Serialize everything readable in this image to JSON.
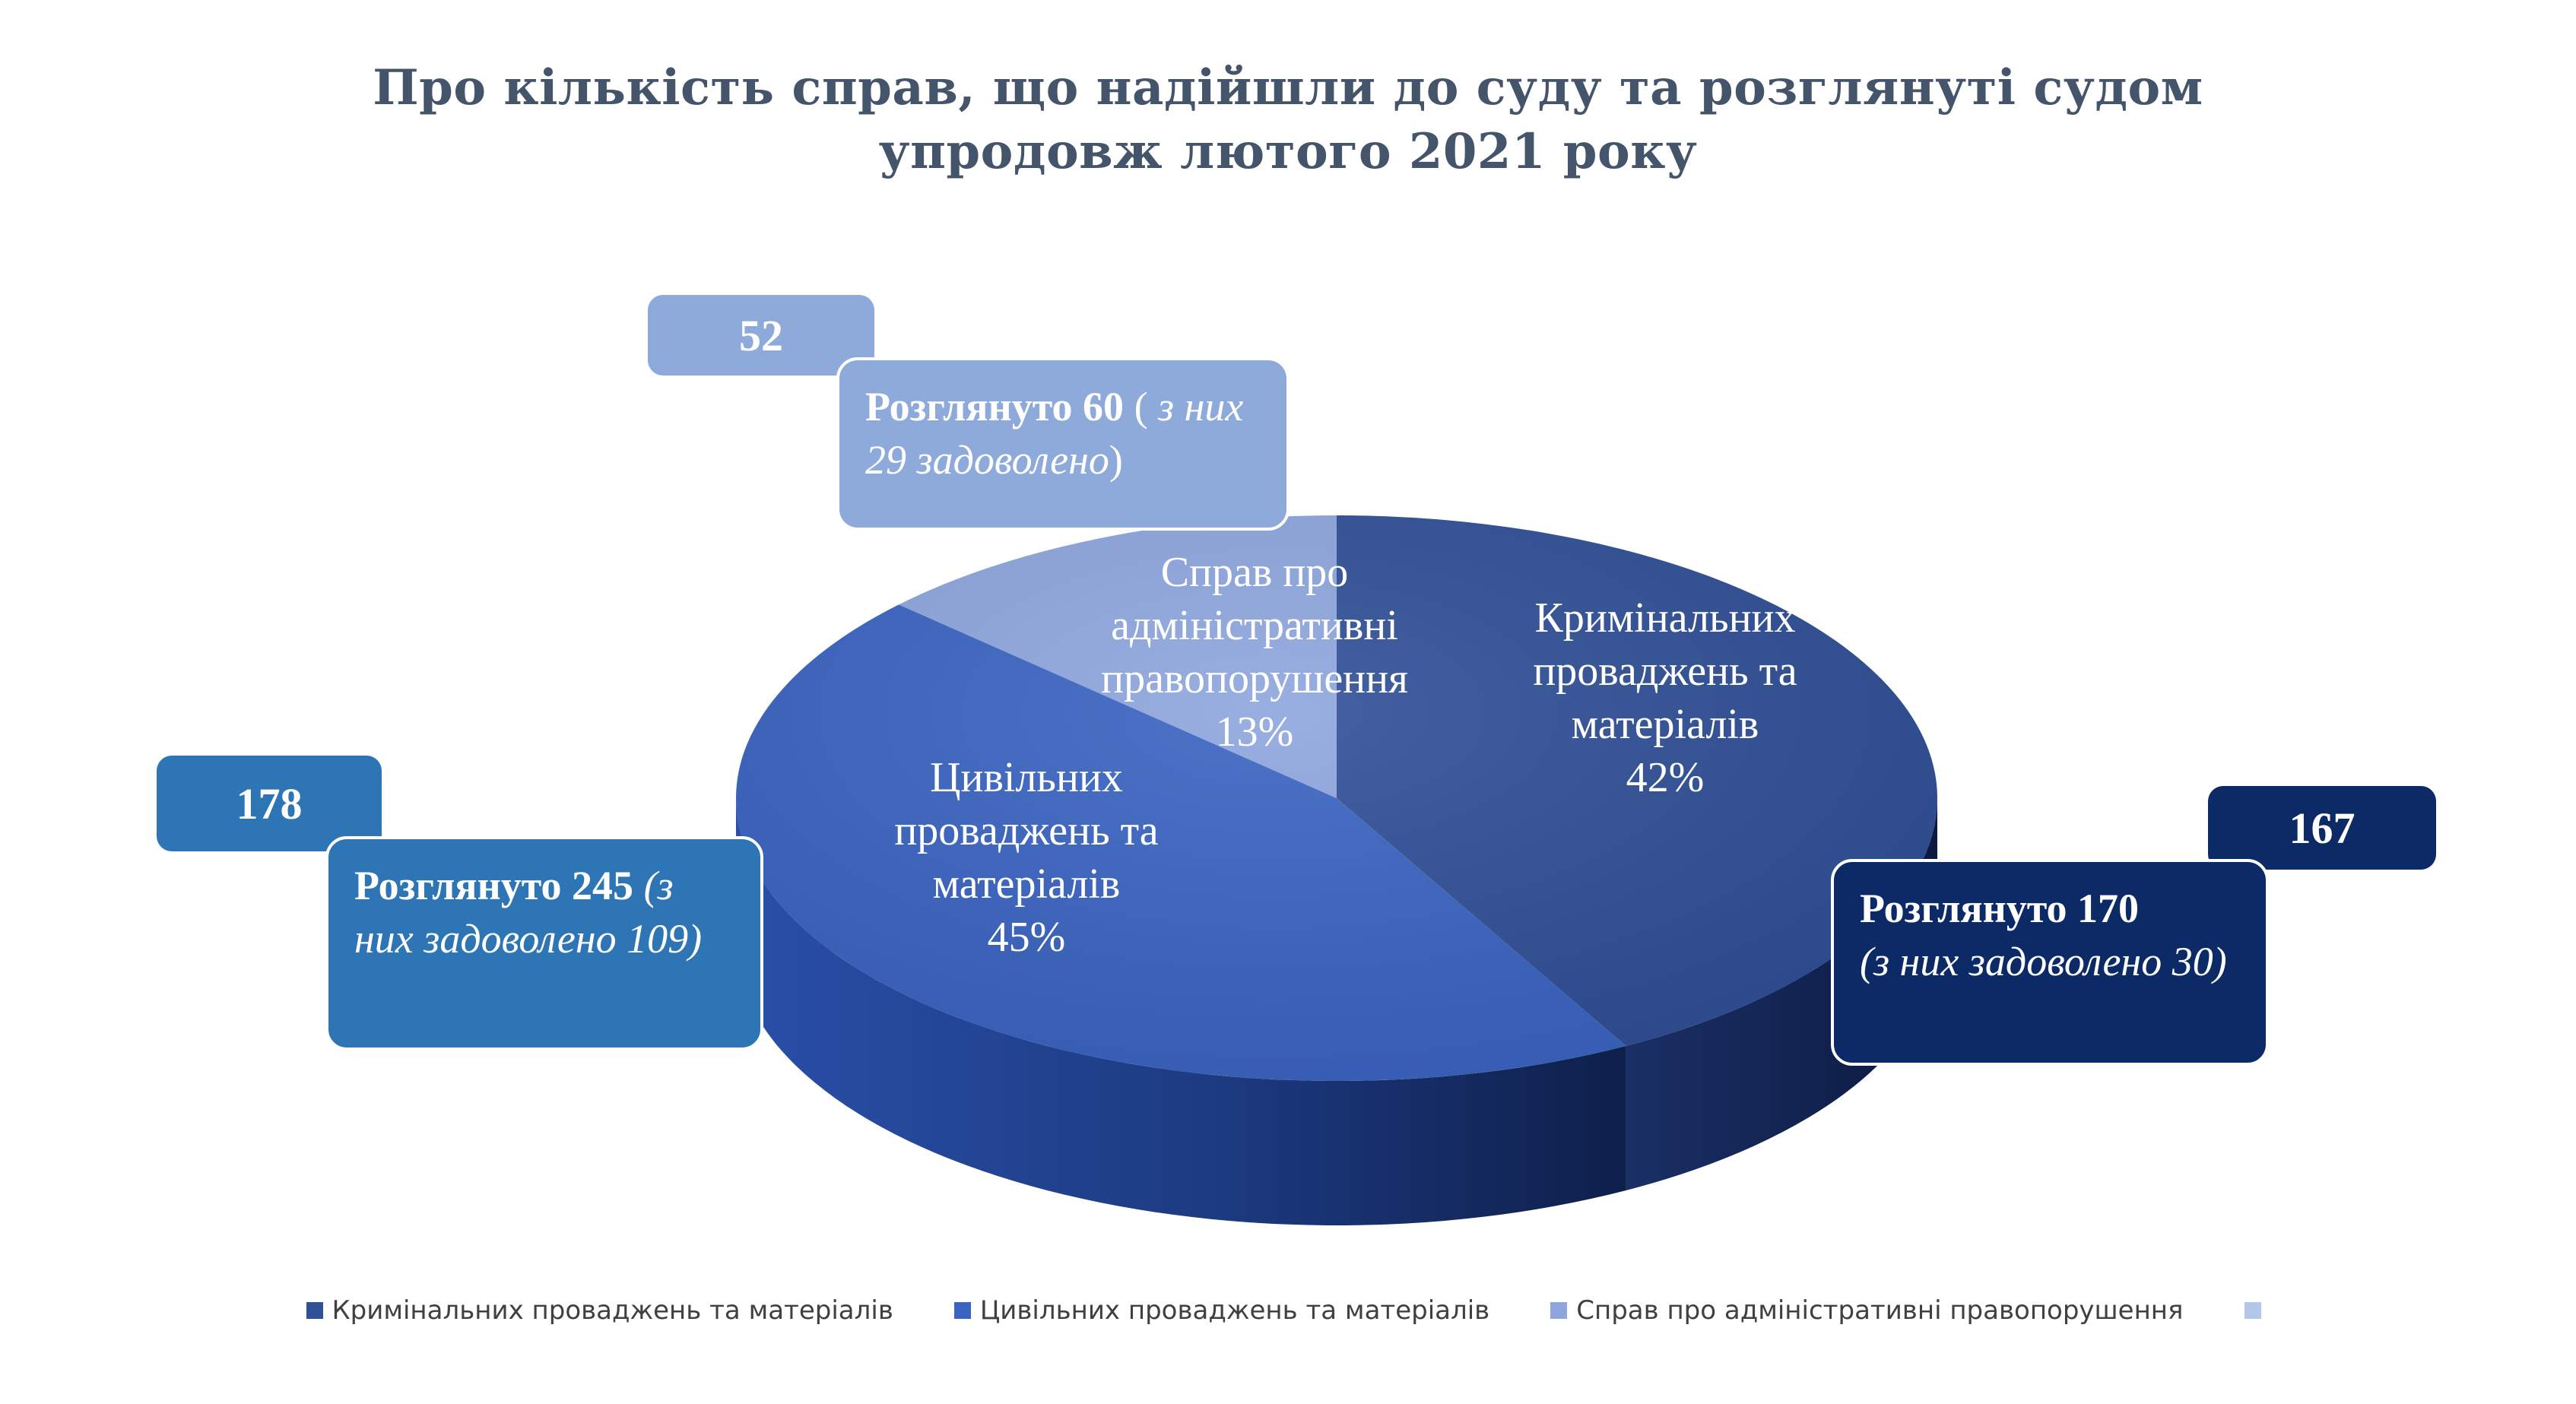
{
  "title_line1": "Про кількість справ, що надійшли до суду та розглянуті судом",
  "title_line2": "упродовж лютого  2021 року",
  "chart_data": {
    "type": "pie",
    "style": "3d",
    "title": "Про кількість справ, що надійшли до суду та розглянуті судом упродовж лютого 2021 року",
    "slices": [
      {
        "label": "Кримінальних проваджень та матеріалів",
        "percent": 42,
        "percent_label": "42%",
        "value": 167,
        "value_label": "167",
        "color": "#2f4f96",
        "callout": {
          "bold": "Розглянуто 170",
          "italic": "(з них задоволено 30)",
          "suffix": ""
        },
        "callout_color": "#0b2a66"
      },
      {
        "label": "Цивільних проваджень та матеріалів",
        "percent": 45,
        "percent_label": "45%",
        "value": 178,
        "value_label": "178",
        "color": "#3a64c2",
        "callout": {
          "bold": "Розглянуто 245",
          "italic": "(з них задоволено 109)",
          "suffix": ""
        },
        "callout_color": "#2e75b6"
      },
      {
        "label": "Справ про адміністративні правопорушення",
        "percent": 13,
        "percent_label": "13%",
        "value": 52,
        "value_label": "52",
        "color": "#8ea6dd",
        "callout": {
          "bold": "Розглянуто 60",
          "prefix": " ( ",
          "italic": "з них 29 задоволено",
          "suffix": ")"
        },
        "callout_color": "#8eaadb"
      }
    ],
    "legend": {
      "placement": "bottom",
      "entries": [
        {
          "label": "Кримінальних проваджень та матеріалів",
          "color": "#2f4f96"
        },
        {
          "label": "Цивільних проваджень та матеріалів",
          "color": "#3a64c2"
        },
        {
          "label": "Справ про адміністративні правопорушення",
          "color": "#8ea6dd"
        },
        {
          "label": "",
          "color": "#b4c6ea"
        }
      ]
    }
  }
}
